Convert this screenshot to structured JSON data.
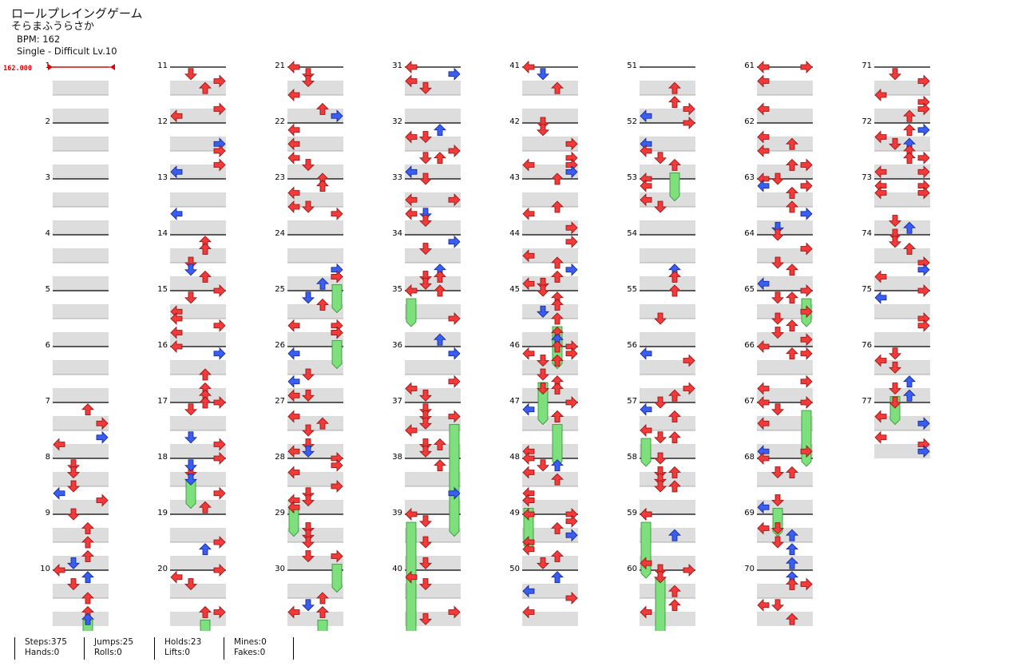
{
  "song": {
    "title": "ロールプレイングゲーム",
    "artist": "そらまふうらさか",
    "bpm_text": "BPM: 162",
    "difficulty_text": "Single - Difficult Lv.10"
  },
  "bpm_marker": {
    "label": "162.000",
    "measure": 1
  },
  "colors": {
    "red_arrow": "#f23a3a",
    "blue_arrow": "#3a5ef2",
    "hold": "#7de07d",
    "band": "#dddddd",
    "bpm_red": "#e00000"
  },
  "measure_count": 77,
  "stats": [
    {
      "top": "Steps:375",
      "bottom": "Hands:0"
    },
    {
      "top": "Jumps:25",
      "bottom": "Rolls:0"
    },
    {
      "top": "Holds:23",
      "bottom": "Lifts:0"
    },
    {
      "top": "Mines:0",
      "bottom": "Fakes:0"
    }
  ]
}
